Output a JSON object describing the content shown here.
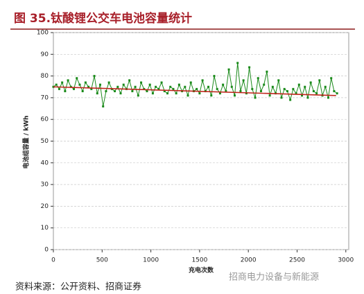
{
  "chart_data": {
    "type": "line",
    "title": "图 35.钛酸锂公交车电池容量统计",
    "ylabel": "电池组容量 / kWh",
    "xlabel": "充电次数",
    "source": "资料来源：公开资料、招商证券",
    "watermark": "招商电力设备与新能源",
    "xlim": [
      0,
      3030
    ],
    "ylim": [
      0,
      100
    ],
    "xticks": [
      0,
      500,
      1000,
      1500,
      2000,
      2500,
      3000
    ],
    "yticks": [
      0,
      10,
      20,
      30,
      40,
      50,
      60,
      70,
      80,
      90,
      100
    ],
    "grid": true,
    "series": [
      {
        "color": "#1a8a1a",
        "x": [
          0,
          30,
          60,
          90,
          120,
          150,
          180,
          210,
          240,
          270,
          300,
          330,
          360,
          390,
          420,
          450,
          480,
          510,
          540,
          570,
          600,
          630,
          660,
          690,
          720,
          750,
          780,
          810,
          840,
          870,
          900,
          930,
          960,
          990,
          1020,
          1050,
          1080,
          1110,
          1140,
          1170,
          1200,
          1230,
          1260,
          1290,
          1320,
          1350,
          1380,
          1410,
          1440,
          1470,
          1500,
          1530,
          1560,
          1590,
          1620,
          1650,
          1680,
          1710,
          1740,
          1770,
          1800,
          1830,
          1860,
          1890,
          1920,
          1950,
          1980,
          2010,
          2040,
          2070,
          2100,
          2130,
          2160,
          2190,
          2220,
          2250,
          2280,
          2310,
          2340,
          2370,
          2400,
          2430,
          2460,
          2490,
          2520,
          2550,
          2580,
          2610,
          2640,
          2670,
          2700,
          2730,
          2760,
          2790,
          2820,
          2850,
          2880,
          2910
        ],
        "values": [
          75,
          76,
          74,
          77,
          73,
          78,
          75,
          74,
          79,
          76,
          73,
          77,
          75,
          74,
          80,
          72,
          76,
          66,
          73,
          77,
          74,
          73,
          75,
          72,
          76,
          74,
          78,
          73,
          75,
          71,
          77,
          74,
          73,
          76,
          72,
          75,
          74,
          77,
          73,
          72,
          75,
          74,
          72,
          76,
          73,
          75,
          71,
          77,
          73,
          74,
          72,
          78,
          73,
          75,
          71,
          80,
          74,
          72,
          76,
          73,
          83,
          75,
          71,
          86,
          73,
          78,
          72,
          84,
          74,
          70,
          79,
          73,
          76,
          82,
          71,
          75,
          72,
          78,
          70,
          74,
          73,
          69,
          74,
          72,
          76,
          71,
          75,
          70,
          77,
          73,
          72,
          78,
          71,
          75,
          70,
          79,
          73,
          72
        ]
      },
      {
        "color": "#c0241c",
        "x": [
          0,
          2900
        ],
        "values": [
          75,
          71
        ]
      }
    ]
  }
}
